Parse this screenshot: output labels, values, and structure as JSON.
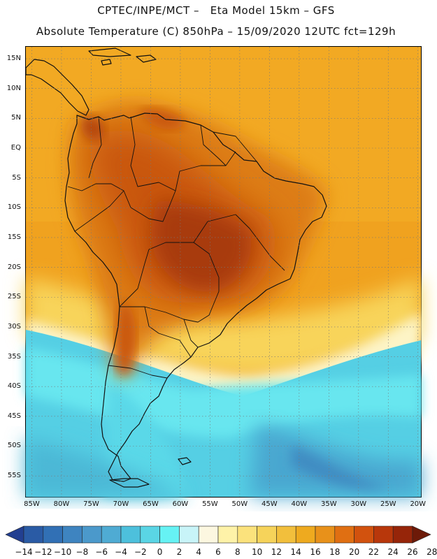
{
  "header": {
    "title_line1": "CPTEC/INPE/MCT –   Eta Model 15km – GFS",
    "title_line2": "Absolute Temperature (C) 850hPa – 15/09/2020 12UTC fct=129h"
  },
  "map": {
    "lat_labels": [
      "15N",
      "10N",
      "5N",
      "EQ",
      "5S",
      "10S",
      "15S",
      "20S",
      "25S",
      "30S",
      "35S",
      "40S",
      "45S",
      "50S",
      "55S"
    ],
    "lat_values": [
      15,
      10,
      5,
      0,
      -5,
      -10,
      -15,
      -20,
      -25,
      -30,
      -35,
      -40,
      -45,
      -50,
      -55
    ],
    "lon_labels": [
      "85W",
      "80W",
      "75W",
      "70W",
      "65W",
      "60W",
      "55W",
      "50W",
      "45W",
      "40W",
      "35W",
      "30W",
      "25W",
      "20W"
    ],
    "lon_values": [
      -85,
      -80,
      -75,
      -70,
      -65,
      -60,
      -55,
      -50,
      -45,
      -40,
      -35,
      -30,
      -25,
      -20
    ],
    "lat_range": [
      -58.5,
      17
    ],
    "lon_range": [
      -86,
      -19.5
    ],
    "gridlines": true
  },
  "colorbar": {
    "labels": [
      "-14",
      "-12",
      "-10",
      "-8",
      "-6",
      "-4",
      "-2",
      "0",
      "2",
      "4",
      "6",
      "8",
      "10",
      "12",
      "14",
      "16",
      "18",
      "20",
      "22",
      "24",
      "26",
      "28"
    ],
    "colors": [
      "#223f91",
      "#2a5ba5",
      "#3170b5",
      "#3e84c0",
      "#4b99cb",
      "#4fabd3",
      "#4dc0dc",
      "#5ad5e5",
      "#66f2f4",
      "#c8f4f8",
      "#fcf7e0",
      "#fef2a8",
      "#fbe27c",
      "#f6d35a",
      "#f2bf3c",
      "#eeaa1f",
      "#e8911a",
      "#e06f12",
      "#d2520e",
      "#b8370b",
      "#962509",
      "#6d1a08"
    ]
  },
  "colors": {
    "warm_tropics": "#f0a01e",
    "hot_core": "#b5400c",
    "cold_south": "#4fc8e2",
    "transition": "#fdf2b0"
  }
}
